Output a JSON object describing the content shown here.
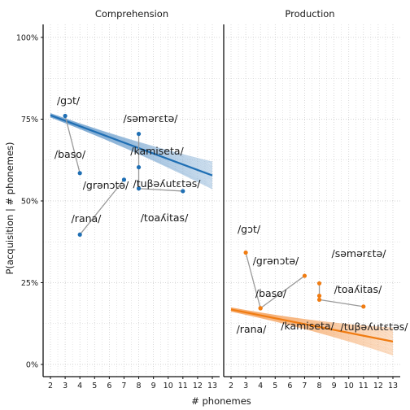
{
  "chart_data": [
    {
      "type": "scatter",
      "panel": "Comprehension",
      "color": "#1f6fb4",
      "band_color": "#7aa8d1",
      "xlim": [
        2,
        13
      ],
      "ylim": [
        0,
        1
      ],
      "xticks": [
        "2",
        "3",
        "4",
        "5",
        "6",
        "7",
        "8",
        "9",
        "10",
        "11",
        "12",
        "13"
      ],
      "yticks": [
        "0%",
        "25%",
        "50%",
        "75%",
        "100%"
      ],
      "fit": {
        "x": [
          2,
          13
        ],
        "y": [
          0.762,
          0.578
        ]
      },
      "points": [
        {
          "label": "/gɔt/",
          "x": 3,
          "y": 0.76
        },
        {
          "label": "/baso/",
          "x": 4,
          "y": 0.585
        },
        {
          "label": "/rana/",
          "x": 4,
          "y": 0.397
        },
        {
          "label": "/grənɔtə/",
          "x": 7,
          "y": 0.565
        },
        {
          "label": "/səmərɛtə/",
          "x": 8,
          "y": 0.705
        },
        {
          "label": "/kamiseta/",
          "x": 8,
          "y": 0.603
        },
        {
          "label": "/tuβəʎutɛtəs/",
          "x": 8,
          "y": 0.538
        },
        {
          "label": "/toaʎitas/",
          "x": 11,
          "y": 0.53
        }
      ],
      "segments": [
        [
          0,
          1
        ],
        [
          2,
          3
        ],
        [
          4,
          5
        ],
        [
          5,
          6
        ],
        [
          6,
          7
        ]
      ]
    },
    {
      "type": "scatter",
      "panel": "Production",
      "color": "#f07c12",
      "band_color": "#f5a96a",
      "xlim": [
        2,
        13
      ],
      "ylim": [
        0,
        1
      ],
      "xticks": [
        "2",
        "3",
        "4",
        "5",
        "6",
        "7",
        "8",
        "9",
        "10",
        "11",
        "12",
        "13"
      ],
      "yticks": [
        "0%",
        "25%",
        "50%",
        "75%",
        "100%"
      ],
      "fit": {
        "x": [
          2,
          13
        ],
        "y": [
          0.168,
          0.07
        ]
      },
      "points": [
        {
          "label": "/gɔt/",
          "x": 3,
          "y": 0.342
        },
        {
          "label": "/baso/",
          "x": 4,
          "y": 0.172
        },
        {
          "label": "/rana/",
          "x": 4,
          "y": 0.172
        },
        {
          "label": "/grənɔtə/",
          "x": 7,
          "y": 0.271
        },
        {
          "label": "/səmərɛtə/",
          "x": 8,
          "y": 0.248
        },
        {
          "label": "/kamiseta/",
          "x": 8,
          "y": 0.21
        },
        {
          "label": "/tuβəʎutɛtəs/",
          "x": 8,
          "y": 0.198
        },
        {
          "label": "/toaʎitas/",
          "x": 11,
          "y": 0.177
        }
      ],
      "segments": [
        [
          0,
          1
        ],
        [
          2,
          3
        ],
        [
          4,
          5
        ],
        [
          5,
          6
        ],
        [
          6,
          7
        ]
      ]
    }
  ],
  "axis": {
    "xlabel": "# phonemes",
    "ylabel": "P(acquisition | # phonemes)"
  }
}
